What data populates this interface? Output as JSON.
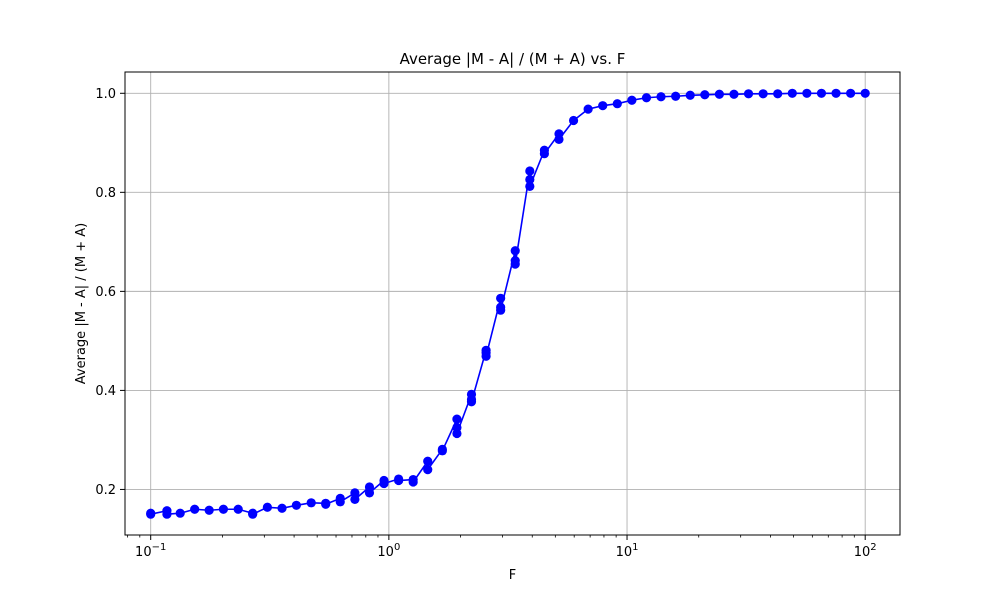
{
  "chart_data": {
    "type": "line",
    "title": "Average |M - A| / (M + A) vs. F",
    "xlabel": "F",
    "ylabel": "Average |M - A| / (M + A)",
    "xscale": "log",
    "xlim": [
      0.078,
      140
    ],
    "ylim": [
      0.108,
      1.043
    ],
    "grid": true,
    "x_ticks": [
      {
        "value": 0.1,
        "base": "10",
        "exp": "−1"
      },
      {
        "value": 1,
        "base": "10",
        "exp": "0"
      },
      {
        "value": 10,
        "base": "10",
        "exp": "1"
      },
      {
        "value": 100,
        "base": "10",
        "exp": "2"
      }
    ],
    "y_ticks": [
      {
        "value": 0.2,
        "label": "0.2"
      },
      {
        "value": 0.4,
        "label": "0.4"
      },
      {
        "value": 0.6,
        "label": "0.6"
      },
      {
        "value": 0.8,
        "label": "0.8"
      },
      {
        "value": 1.0,
        "label": "1.0"
      }
    ],
    "series": [
      {
        "color": "#0000ff",
        "marker": "circle",
        "points": [
          [
            0.1,
            0.152
          ],
          [
            0.1,
            0.15
          ],
          [
            0.117,
            0.157
          ],
          [
            0.117,
            0.15
          ],
          [
            0.133,
            0.152
          ],
          [
            0.153,
            0.16
          ],
          [
            0.176,
            0.158
          ],
          [
            0.202,
            0.16
          ],
          [
            0.233,
            0.16
          ],
          [
            0.268,
            0.152
          ],
          [
            0.268,
            0.15
          ],
          [
            0.309,
            0.164
          ],
          [
            0.356,
            0.162
          ],
          [
            0.409,
            0.168
          ],
          [
            0.472,
            0.173
          ],
          [
            0.543,
            0.172
          ],
          [
            0.543,
            0.17
          ],
          [
            0.625,
            0.182
          ],
          [
            0.625,
            0.175
          ],
          [
            0.72,
            0.193
          ],
          [
            0.72,
            0.18
          ],
          [
            0.829,
            0.205
          ],
          [
            0.829,
            0.193
          ],
          [
            0.954,
            0.218
          ],
          [
            0.954,
            0.212
          ],
          [
            1.099,
            0.221
          ],
          [
            1.099,
            0.218
          ],
          [
            1.265,
            0.22
          ],
          [
            1.265,
            0.215
          ],
          [
            1.456,
            0.257
          ],
          [
            1.456,
            0.24
          ],
          [
            1.677,
            0.281
          ],
          [
            1.677,
            0.278
          ],
          [
            1.931,
            0.342
          ],
          [
            1.931,
            0.325
          ],
          [
            1.931,
            0.313
          ],
          [
            2.223,
            0.392
          ],
          [
            2.223,
            0.382
          ],
          [
            2.223,
            0.377
          ],
          [
            2.56,
            0.481
          ],
          [
            2.56,
            0.476
          ],
          [
            2.56,
            0.469
          ],
          [
            2.947,
            0.586
          ],
          [
            2.947,
            0.568
          ],
          [
            2.947,
            0.562
          ],
          [
            3.393,
            0.682
          ],
          [
            3.393,
            0.662
          ],
          [
            3.393,
            0.655
          ],
          [
            3.907,
            0.843
          ],
          [
            3.907,
            0.826
          ],
          [
            3.907,
            0.812
          ],
          [
            4.498,
            0.885
          ],
          [
            4.498,
            0.878
          ],
          [
            5.179,
            0.918
          ],
          [
            5.179,
            0.907
          ],
          [
            5.963,
            0.945
          ],
          [
            6.866,
            0.968
          ],
          [
            7.906,
            0.975
          ],
          [
            9.103,
            0.979
          ],
          [
            10.48,
            0.986
          ],
          [
            12.07,
            0.991
          ],
          [
            13.89,
            0.993
          ],
          [
            16.0,
            0.994
          ],
          [
            18.42,
            0.996
          ],
          [
            21.21,
            0.997
          ],
          [
            24.42,
            0.998
          ],
          [
            28.12,
            0.998
          ],
          [
            32.37,
            0.999
          ],
          [
            37.28,
            0.999
          ],
          [
            42.92,
            0.999
          ],
          [
            49.42,
            1.0
          ],
          [
            56.9,
            1.0
          ],
          [
            65.51,
            1.0
          ],
          [
            75.43,
            1.0
          ],
          [
            86.85,
            1.0
          ],
          [
            100.0,
            1.0
          ]
        ]
      }
    ]
  }
}
